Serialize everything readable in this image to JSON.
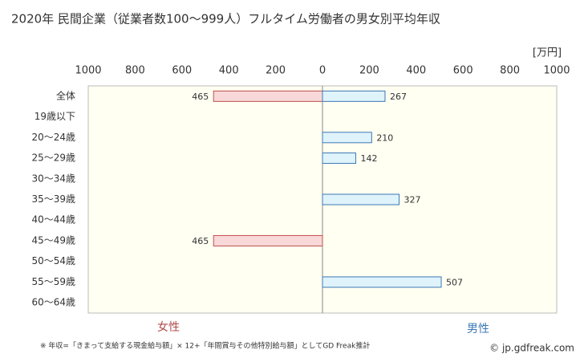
{
  "chart_data": {
    "type": "butterfly-bar",
    "title": "2020年 民間企業（従業者数100～999人）フルタイム労働者の男女別平均年収",
    "unit": "[万円]",
    "categories": [
      "全体",
      "19歳以下",
      "20～24歳",
      "25～29歳",
      "30～34歳",
      "35～39歳",
      "40～44歳",
      "45～49歳",
      "50～54歳",
      "55～59歳",
      "60～64歳"
    ],
    "series": [
      {
        "name": "女性",
        "side": "left",
        "color": "#f8d8d8",
        "stroke": "#c0504d",
        "label_color": "#b04a48",
        "values": [
          465,
          null,
          null,
          null,
          null,
          null,
          null,
          465,
          null,
          null,
          null
        ]
      },
      {
        "name": "男性",
        "side": "right",
        "color": "#dff3fb",
        "stroke": "#3c78b5",
        "label_color": "#3c78b5",
        "values": [
          267,
          null,
          210,
          142,
          null,
          327,
          null,
          null,
          null,
          507,
          null
        ]
      }
    ],
    "xlim": [
      0,
      1000
    ],
    "xticks": [
      0,
      200,
      400,
      600,
      800,
      1000
    ],
    "note": "※ 年収=「きまって支給する現金給与額」× 12+「年間賞与その他特別給与額」としてGD Freak推計",
    "credit": "© jp.gdfreak.com"
  }
}
